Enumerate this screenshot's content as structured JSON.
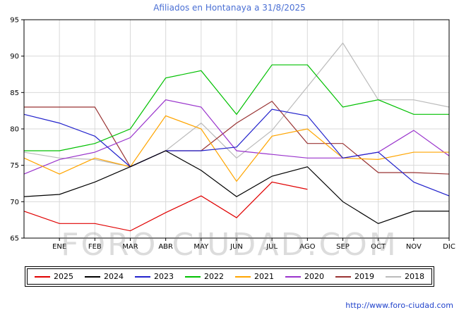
{
  "title": "Afiliados en Hontanaya a 31/8/2025",
  "watermark": "FORO-CIUDAD.COM",
  "footer_url": "http://www.foro-ciudad.com",
  "chart_data": {
    "type": "line",
    "title": "Afiliados en Hontanaya a 31/8/2025",
    "categories": [
      "",
      "ENE",
      "FEB",
      "MAR",
      "ABR",
      "MAY",
      "JUN",
      "JUL",
      "AGO",
      "SEP",
      "OCT",
      "NOV",
      "DIC"
    ],
    "x_note": "first point of each series is plotted at the left axis edge before ENE",
    "ylim": [
      65,
      95
    ],
    "yticks": [
      65,
      70,
      75,
      80,
      85,
      90,
      95
    ],
    "grid": true,
    "legend_position": "bottom",
    "series": [
      {
        "name": "2025",
        "color": "#e00000",
        "values": [
          68.7,
          67,
          67,
          66,
          68.5,
          70.8,
          67.8,
          72.7,
          71.7,
          null,
          null,
          null,
          null
        ]
      },
      {
        "name": "2024",
        "color": "#000000",
        "values": [
          70.7,
          71,
          72.7,
          74.8,
          77,
          74.3,
          70.7,
          73.5,
          74.8,
          70,
          67,
          68.7,
          68.7
        ]
      },
      {
        "name": "2023",
        "color": "#2222cc",
        "values": [
          82,
          80.8,
          79,
          74.8,
          77,
          77,
          77.5,
          82.7,
          81.8,
          76,
          76.8,
          72.7,
          70.8
        ]
      },
      {
        "name": "2022",
        "color": "#00c000",
        "values": [
          77,
          77,
          78,
          80,
          87,
          88,
          82,
          88.8,
          88.8,
          83,
          84,
          82,
          82
        ]
      },
      {
        "name": "2021",
        "color": "#ffa500",
        "values": [
          76,
          73.8,
          76,
          74.8,
          81.8,
          80,
          72.8,
          79,
          80,
          76,
          75.8,
          76.8,
          76.8
        ]
      },
      {
        "name": "2020",
        "color": "#9933cc",
        "values": [
          73.8,
          75.8,
          76.8,
          78.8,
          84,
          83,
          77,
          76.5,
          76,
          76,
          76.8,
          79.8,
          76.3
        ]
      },
      {
        "name": "2019",
        "color": "#993333",
        "values": [
          83,
          83,
          83,
          74.8,
          77,
          77,
          80.8,
          83.8,
          78,
          78,
          74,
          74,
          73.8
        ]
      },
      {
        "name": "2018",
        "color": "#bbbbbb",
        "values": [
          76.8,
          76,
          75.8,
          74.8,
          77,
          80.8,
          76,
          79.8,
          85.8,
          91.8,
          84,
          84,
          83
        ]
      }
    ]
  }
}
